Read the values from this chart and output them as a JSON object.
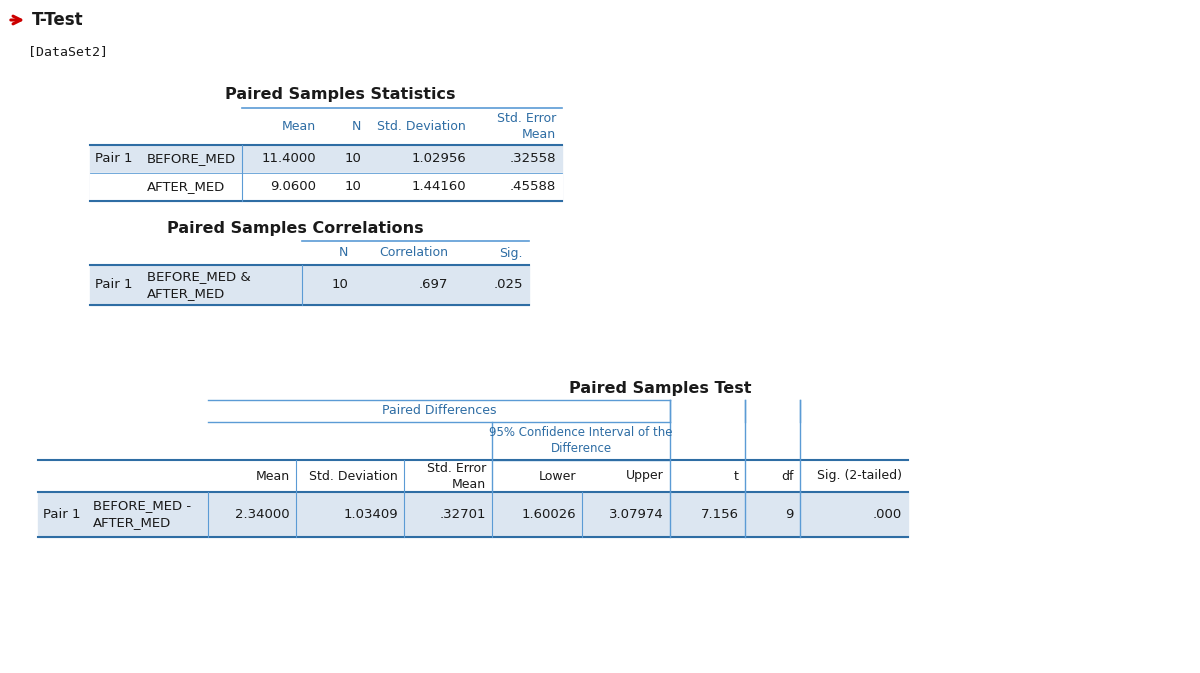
{
  "title": "T-Test",
  "dataset_label": "[DataSet2]",
  "bg_color": "#ffffff",
  "header_color": "#2e6da4",
  "text_color": "#1a1a1a",
  "row_bg_shaded": "#dce6f1",
  "border_color": "#5b9bd5",
  "border_dark": "#2e6da4",
  "arrow_color": "#cc0000",
  "table1_title": "Paired Samples Statistics",
  "table1_col_headers": [
    "Mean",
    "N",
    "Std. Deviation",
    "Std. Error\nMean"
  ],
  "table1_rows": [
    [
      "Pair 1",
      "BEFORE_MED",
      "11.4000",
      "10",
      "1.02956",
      ".32558"
    ],
    [
      "",
      "AFTER_MED",
      "9.0600",
      "10",
      "1.44160",
      ".45588"
    ]
  ],
  "table2_title": "Paired Samples Correlations",
  "table2_col_headers": [
    "N",
    "Correlation",
    "Sig."
  ],
  "table2_rows": [
    [
      "Pair 1",
      "BEFORE_MED &\nAFTER_MED",
      "10",
      ".697",
      ".025"
    ]
  ],
  "table3_title": "Paired Samples Test",
  "table3_subheader1": "Paired Differences",
  "table3_subheader2": "95% Confidence Interval of the\nDifference",
  "table3_col_headers": [
    "Mean",
    "Std. Deviation",
    "Std. Error\nMean",
    "Lower",
    "Upper",
    "t",
    "df",
    "Sig. (2-tailed)"
  ],
  "table3_rows": [
    [
      "Pair 1",
      "BEFORE_MED -\nAFTER_MED",
      "2.34000",
      "1.03409",
      ".32701",
      "1.60026",
      "3.07974",
      "7.156",
      "9",
      ".000"
    ]
  ]
}
